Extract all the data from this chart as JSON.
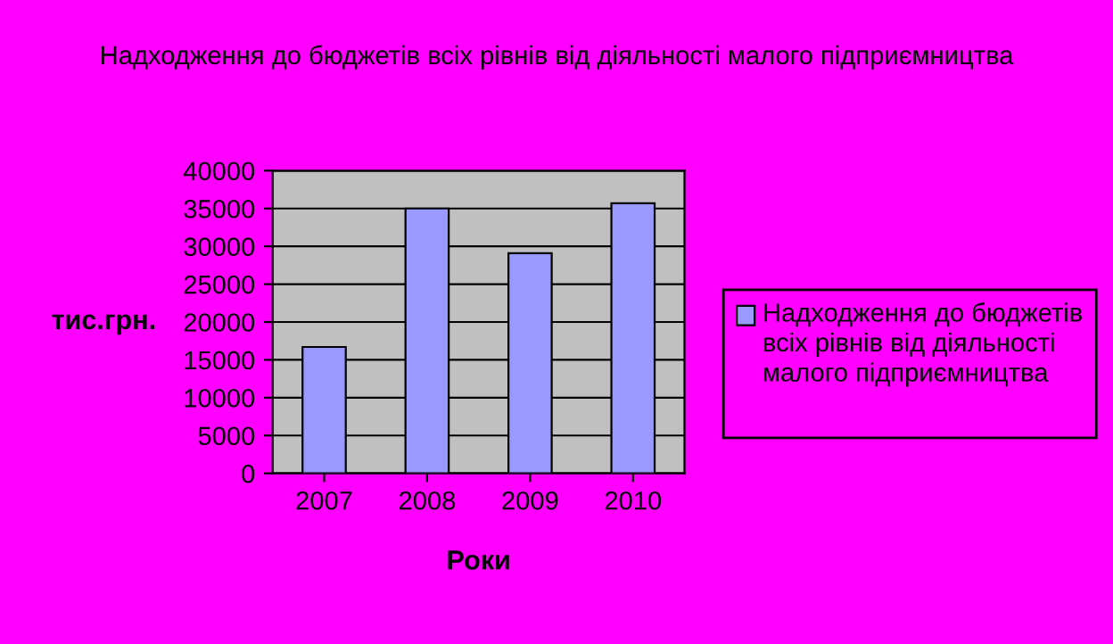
{
  "chart_data": {
    "type": "bar",
    "title": "Надходження до бюджетів всіх рівнів від діяльності малого підприємництва",
    "xlabel": "Роки",
    "ylabel": "тис.грн.",
    "categories": [
      "2007",
      "2008",
      "2009",
      "2010"
    ],
    "series": [
      {
        "name": "Надходження до бюджетів всіх рівнів від діяльності малого підприємництва",
        "color": "#9999ff",
        "values": [
          16700,
          35000,
          29100,
          35700
        ]
      }
    ],
    "ylim": [
      0,
      40000
    ],
    "yticks": [
      0,
      5000,
      10000,
      15000,
      20000,
      25000,
      30000,
      35000,
      40000
    ],
    "grid": "y",
    "legend": "right"
  }
}
